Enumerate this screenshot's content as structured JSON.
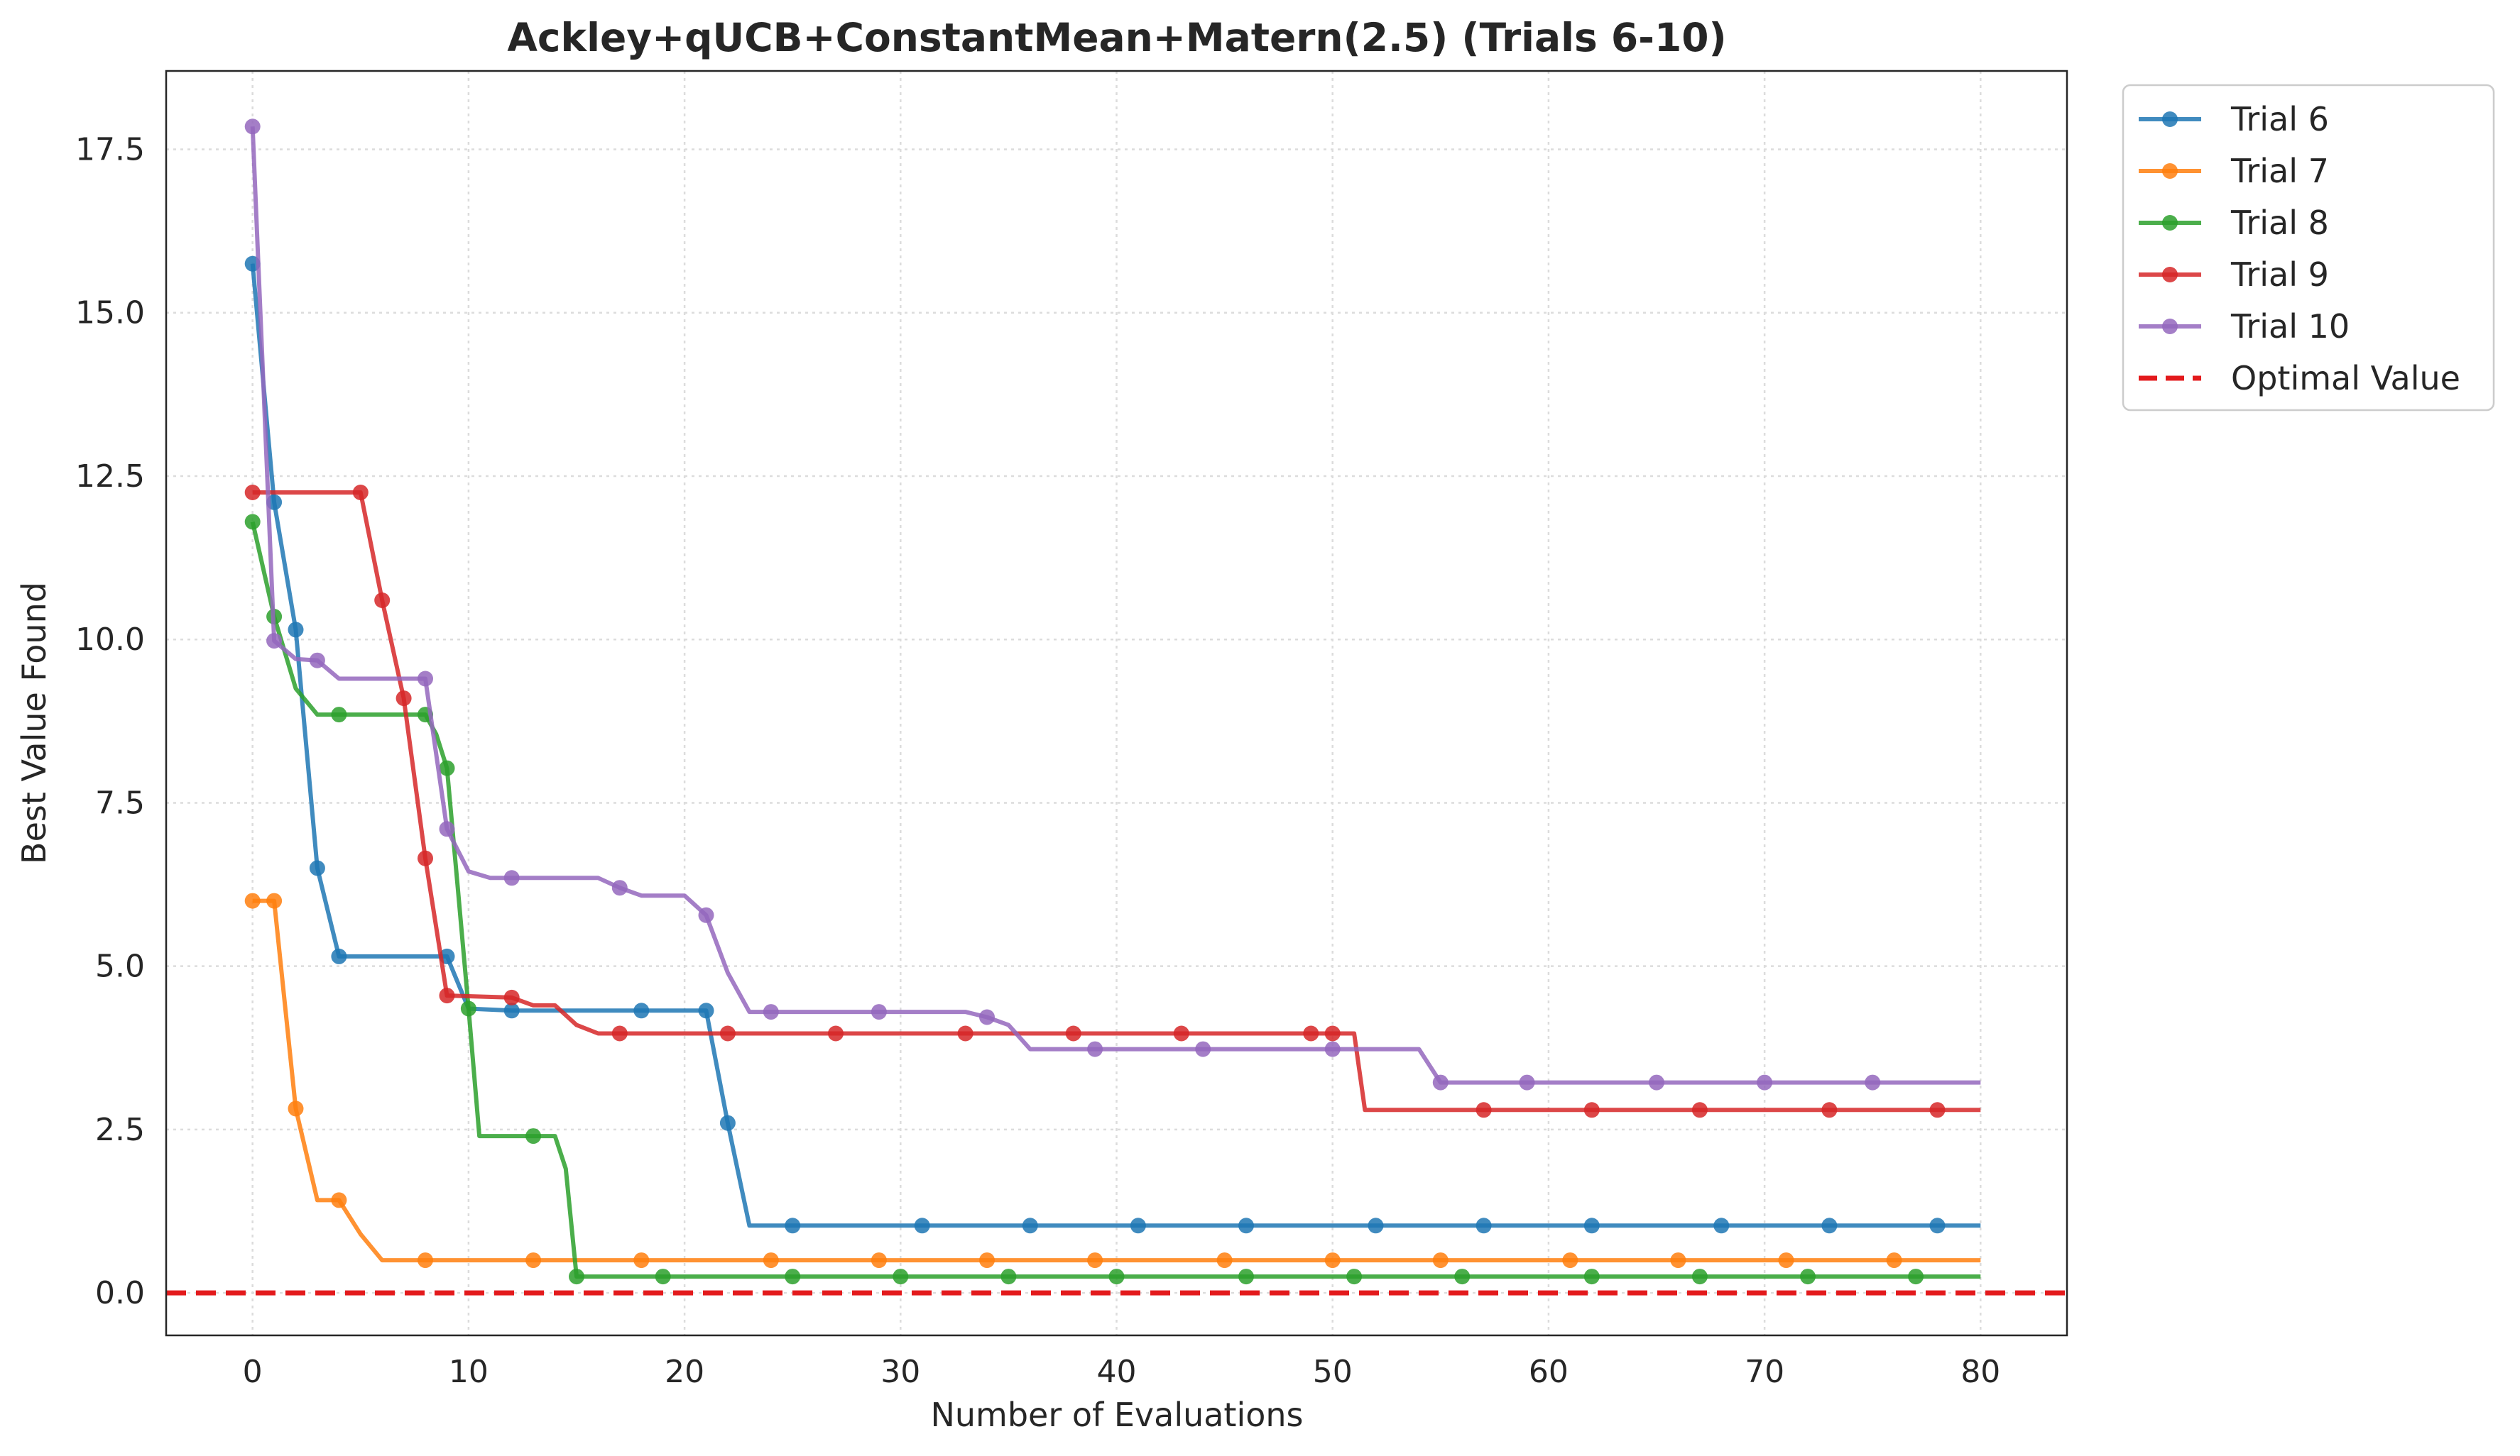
{
  "chart_data": {
    "type": "line",
    "title": "Ackley+qUCB+ConstantMean+Matern(2.5) (Trials 6-10)",
    "xlabel": "Number of Evaluations",
    "ylabel": "Best Value Found",
    "xlim": [
      -4,
      84
    ],
    "ylim": [
      -0.65,
      18.7
    ],
    "xticks": [
      0,
      10,
      20,
      30,
      40,
      50,
      60,
      70,
      80
    ],
    "xtick_labels": [
      "0",
      "10",
      "20",
      "30",
      "40",
      "50",
      "60",
      "70",
      "80"
    ],
    "yticks": [
      0,
      2.5,
      5,
      7.5,
      10,
      12.5,
      15,
      17.5
    ],
    "ytick_labels": [
      "0.0",
      "2.5",
      "5.0",
      "7.5",
      "10.0",
      "12.5",
      "15.0",
      "17.5"
    ],
    "grid": true,
    "legend_position": "outside-top-right",
    "series": [
      {
        "name": "Trial 6",
        "color": "#1f77b4",
        "points": [
          [
            0,
            15.75
          ],
          [
            1,
            12.1
          ],
          [
            2,
            10.15
          ],
          [
            3,
            6.5
          ],
          [
            4,
            5.15
          ],
          [
            5,
            5.15
          ],
          [
            6,
            5.15
          ],
          [
            7,
            5.15
          ],
          [
            8,
            5.15
          ],
          [
            9,
            5.15
          ],
          [
            10,
            4.35
          ],
          [
            12,
            4.32
          ],
          [
            18,
            4.32
          ],
          [
            21,
            4.32
          ],
          [
            22,
            2.6
          ],
          [
            23,
            1.03
          ],
          [
            80,
            1.03
          ]
        ],
        "markers": [
          0,
          1,
          2,
          3,
          4,
          9,
          12,
          18,
          21,
          22,
          25,
          31,
          36,
          41,
          46,
          52,
          57,
          62,
          68,
          73,
          78
        ]
      },
      {
        "name": "Trial 7",
        "color": "#ff7f0e",
        "points": [
          [
            0,
            6.0
          ],
          [
            1,
            6.0
          ],
          [
            2,
            2.82
          ],
          [
            3,
            1.42
          ],
          [
            4,
            1.42
          ],
          [
            5,
            0.9
          ],
          [
            6,
            0.5
          ],
          [
            80,
            0.5
          ]
        ],
        "markers": [
          0,
          1,
          2,
          4,
          8,
          13,
          18,
          24,
          29,
          34,
          39,
          45,
          50,
          55,
          61,
          66,
          71,
          76
        ]
      },
      {
        "name": "Trial 8",
        "color": "#2ca02c",
        "points": [
          [
            0,
            11.8
          ],
          [
            1,
            10.35
          ],
          [
            2,
            9.25
          ],
          [
            3,
            8.85
          ],
          [
            4,
            8.85
          ],
          [
            8,
            8.85
          ],
          [
            8.5,
            8.55
          ],
          [
            9,
            8.03
          ],
          [
            9.5,
            6.2
          ],
          [
            10,
            4.35
          ],
          [
            10.5,
            2.4
          ],
          [
            14,
            2.4
          ],
          [
            14.5,
            1.9
          ],
          [
            15,
            0.25
          ],
          [
            80,
            0.25
          ]
        ],
        "markers": [
          0,
          1,
          4,
          8,
          9,
          10,
          13,
          15,
          19,
          25,
          30,
          35,
          40,
          46,
          51,
          56,
          62,
          67,
          72,
          77
        ]
      },
      {
        "name": "Trial 9",
        "color": "#d62728",
        "points": [
          [
            0,
            12.25
          ],
          [
            5,
            12.25
          ],
          [
            6,
            10.6
          ],
          [
            7,
            9.1
          ],
          [
            8,
            6.65
          ],
          [
            9,
            4.55
          ],
          [
            12,
            4.52
          ],
          [
            13,
            4.4
          ],
          [
            14,
            4.4
          ],
          [
            15,
            4.1
          ],
          [
            16,
            3.97
          ],
          [
            51,
            3.97
          ],
          [
            51.5,
            2.8
          ],
          [
            80,
            2.8
          ]
        ],
        "markers": [
          0,
          5,
          6,
          7,
          8,
          9,
          12,
          17,
          22,
          27,
          33,
          38,
          43,
          49,
          50,
          57,
          62,
          67,
          73,
          78
        ]
      },
      {
        "name": "Trial 10",
        "color": "#9467bd",
        "points": [
          [
            0,
            17.85
          ],
          [
            1,
            9.98
          ],
          [
            2,
            9.7
          ],
          [
            3,
            9.68
          ],
          [
            4,
            9.4
          ],
          [
            8,
            9.4
          ],
          [
            9,
            7.1
          ],
          [
            10,
            6.45
          ],
          [
            11,
            6.35
          ],
          [
            16,
            6.35
          ],
          [
            17,
            6.2
          ],
          [
            18,
            6.08
          ],
          [
            20,
            6.08
          ],
          [
            21,
            5.78
          ],
          [
            22,
            4.9
          ],
          [
            23,
            4.3
          ],
          [
            33,
            4.3
          ],
          [
            34,
            4.22
          ],
          [
            35,
            4.1
          ],
          [
            36,
            3.73
          ],
          [
            54,
            3.73
          ],
          [
            55,
            3.22
          ],
          [
            80,
            3.22
          ]
        ],
        "markers": [
          0,
          1,
          3,
          8,
          9,
          12,
          17,
          21,
          24,
          29,
          34,
          39,
          44,
          50,
          55,
          59,
          65,
          70,
          75
        ]
      }
    ],
    "reference_line": {
      "name": "Optimal Value",
      "y": 0,
      "color": "#e31a1c",
      "style": "dashed"
    }
  }
}
